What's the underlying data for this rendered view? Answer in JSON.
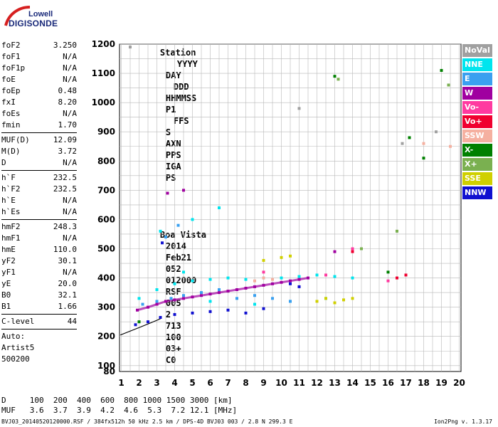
{
  "logo": {
    "line1": "Lowell",
    "line2": "DIGISONDE"
  },
  "header": {
    "labels": [
      "Station",
      "YYYY",
      "DAY",
      "DDD",
      "HHMMSS",
      "P1",
      "FFS",
      "S",
      "AXN",
      "PPS",
      "IGA",
      "PS"
    ],
    "values": [
      "Boa Vista",
      "2014",
      "Feb21",
      "052",
      "012000",
      "RSF",
      "005",
      "2",
      "713",
      "100",
      "03+",
      "C0"
    ]
  },
  "params_group1": [
    {
      "k": "foF2",
      "v": "3.250"
    },
    {
      "k": "foF1",
      "v": "N/A"
    },
    {
      "k": "foF1p",
      "v": "N/A"
    },
    {
      "k": "foE",
      "v": "N/A"
    },
    {
      "k": "foEp",
      "v": "0.48"
    },
    {
      "k": "fxI",
      "v": "8.20"
    },
    {
      "k": "foEs",
      "v": "N/A"
    },
    {
      "k": "fmin",
      "v": "1.70"
    }
  ],
  "params_group2": [
    {
      "k": "MUF(D)",
      "v": "12.09"
    },
    {
      "k": "M(D)",
      "v": "3.72"
    },
    {
      "k": "D",
      "v": "N/A"
    }
  ],
  "params_group3": [
    {
      "k": "h`F",
      "v": "232.5"
    },
    {
      "k": "h`F2",
      "v": "232.5"
    },
    {
      "k": "h`E",
      "v": "N/A"
    },
    {
      "k": "h`Es",
      "v": "N/A"
    }
  ],
  "params_group4": [
    {
      "k": "hmF2",
      "v": "248.3"
    },
    {
      "k": "hmF1",
      "v": "N/A"
    },
    {
      "k": "hmE",
      "v": "110.0"
    },
    {
      "k": "yF2",
      "v": "30.1"
    },
    {
      "k": "yF1",
      "v": "N/A"
    },
    {
      "k": "yE",
      "v": "20.0"
    },
    {
      "k": "B0",
      "v": "32.1"
    },
    {
      "k": "B1",
      "v": "1.66"
    }
  ],
  "params_group5": [
    {
      "k": "C-level",
      "v": "44"
    }
  ],
  "auto": {
    "line1": "Auto:",
    "line2": "Artist5",
    "line3": "500200"
  },
  "legend": [
    {
      "label": "NoVal",
      "color": "#a0a0a0"
    },
    {
      "label": "NNE",
      "color": "#00e5ee"
    },
    {
      "label": "E",
      "color": "#3aa0f0"
    },
    {
      "label": "W",
      "color": "#a000a0"
    },
    {
      "label": "Vo-",
      "color": "#ff3aa0"
    },
    {
      "label": "Vo+",
      "color": "#f00030"
    },
    {
      "label": "SSW",
      "color": "#f5b0a0"
    },
    {
      "label": "X-",
      "color": "#008000"
    },
    {
      "label": "X+",
      "color": "#7ab050"
    },
    {
      "label": "SSE",
      "color": "#d0d000"
    },
    {
      "label": "NNW",
      "color": "#1010d0"
    }
  ],
  "footer": {
    "d_row": "D     100  200  400  600  800 1000 1500 3000 [km]",
    "muf_row": "MUF   3.6  3.7  3.9  4.2  4.6  5.3  7.2 12.1 [MHz]",
    "file_line": "BVJ03_20140520120000.RSF / 384fx512h 50 kHz 2.5 km / DPS-4D BVJ03 003 / 2.8 N 299.3 E",
    "version": "Ion2Png v. 1.3.17"
  },
  "chart_data": {
    "type": "scatter",
    "title": "",
    "xlabel": "",
    "ylabel": "",
    "xlim": [
      0.9,
      20.1
    ],
    "ylim": [
      80,
      1200
    ],
    "x_ticks": [
      1,
      2,
      3,
      4,
      5,
      6,
      7,
      8,
      9,
      10,
      11,
      12,
      13,
      14,
      15,
      16,
      17,
      18,
      19,
      20
    ],
    "y_ticks": [
      80,
      100,
      200,
      300,
      400,
      500,
      600,
      700,
      800,
      900,
      1000,
      1100,
      1200
    ],
    "grid": true,
    "series": [
      {
        "name": "W",
        "color": "#a000a0",
        "points": [
          [
            1.9,
            290
          ],
          [
            2.5,
            300
          ],
          [
            3.0,
            310
          ],
          [
            3.5,
            320
          ],
          [
            4.0,
            325
          ],
          [
            4.5,
            330
          ],
          [
            5.0,
            335
          ],
          [
            5.5,
            340
          ],
          [
            6.0,
            345
          ],
          [
            6.5,
            350
          ],
          [
            7.0,
            355
          ],
          [
            7.5,
            360
          ],
          [
            8.0,
            365
          ],
          [
            8.5,
            370
          ],
          [
            9.0,
            375
          ],
          [
            9.5,
            380
          ],
          [
            10.0,
            385
          ],
          [
            10.5,
            390
          ],
          [
            11.0,
            395
          ],
          [
            11.5,
            400
          ],
          [
            3.6,
            690
          ],
          [
            4.5,
            700
          ],
          [
            13.0,
            490
          ]
        ]
      },
      {
        "name": "NNE",
        "color": "#00e5ee",
        "points": [
          [
            2.0,
            330
          ],
          [
            3.0,
            360
          ],
          [
            4.0,
            380
          ],
          [
            5.0,
            390
          ],
          [
            6.0,
            395
          ],
          [
            7.0,
            400
          ],
          [
            8.0,
            395
          ],
          [
            9.0,
            400
          ],
          [
            10.0,
            400
          ],
          [
            11.0,
            405
          ],
          [
            12.0,
            410
          ],
          [
            13.0,
            405
          ],
          [
            14.0,
            400
          ],
          [
            3.2,
            560
          ],
          [
            5.0,
            600
          ],
          [
            6.5,
            640
          ],
          [
            4.5,
            420
          ],
          [
            6.0,
            320
          ],
          [
            8.5,
            310
          ],
          [
            10.5,
            320
          ],
          [
            12.5,
            330
          ]
        ]
      },
      {
        "name": "E",
        "color": "#3aa0f0",
        "points": [
          [
            2.2,
            310
          ],
          [
            3.0,
            320
          ],
          [
            3.8,
            330
          ],
          [
            4.5,
            340
          ],
          [
            5.5,
            350
          ],
          [
            6.5,
            360
          ],
          [
            7.5,
            330
          ],
          [
            8.5,
            340
          ],
          [
            9.5,
            330
          ],
          [
            10.5,
            320
          ],
          [
            3.5,
            540
          ],
          [
            4.2,
            580
          ]
        ]
      },
      {
        "name": "NNW",
        "color": "#1010d0",
        "points": [
          [
            1.8,
            240
          ],
          [
            2.5,
            250
          ],
          [
            3.2,
            265
          ],
          [
            4.0,
            275
          ],
          [
            5.0,
            280
          ],
          [
            6.0,
            285
          ],
          [
            7.0,
            290
          ],
          [
            8.0,
            280
          ],
          [
            9.0,
            295
          ],
          [
            10.5,
            380
          ],
          [
            11.0,
            370
          ],
          [
            3.3,
            520
          ]
        ]
      },
      {
        "name": "SSE",
        "color": "#d0d000",
        "points": [
          [
            12.0,
            320
          ],
          [
            12.5,
            330
          ],
          [
            13.0,
            315
          ],
          [
            13.5,
            325
          ],
          [
            14.0,
            330
          ],
          [
            10.0,
            470
          ],
          [
            10.5,
            475
          ],
          [
            9.0,
            460
          ]
        ]
      },
      {
        "name": "SSW",
        "color": "#f5b0a0",
        "points": [
          [
            8.5,
            390
          ],
          [
            9.0,
            400
          ],
          [
            9.5,
            395
          ],
          [
            18.0,
            860
          ],
          [
            19.5,
            850
          ]
        ]
      },
      {
        "name": "X-",
        "color": "#008000",
        "points": [
          [
            2.0,
            250
          ],
          [
            13.0,
            1090
          ],
          [
            16.0,
            420
          ],
          [
            18.0,
            810
          ],
          [
            19.0,
            1110
          ],
          [
            17.2,
            880
          ]
        ]
      },
      {
        "name": "X+",
        "color": "#7ab050",
        "points": [
          [
            13.2,
            1080
          ],
          [
            14.5,
            500
          ],
          [
            16.5,
            560
          ],
          [
            19.4,
            1060
          ]
        ]
      },
      {
        "name": "Vo-",
        "color": "#ff3aa0",
        "points": [
          [
            9.0,
            420
          ],
          [
            12.5,
            410
          ],
          [
            14.0,
            500
          ],
          [
            16.0,
            390
          ]
        ]
      },
      {
        "name": "Vo+",
        "color": "#f00030",
        "points": [
          [
            14.0,
            490
          ],
          [
            16.5,
            400
          ],
          [
            17.0,
            410
          ]
        ]
      },
      {
        "name": "NoVal",
        "color": "#a0a0a0",
        "points": [
          [
            1.5,
            1190
          ],
          [
            11.0,
            980
          ],
          [
            16.8,
            860
          ],
          [
            18.7,
            900
          ]
        ]
      }
    ]
  }
}
